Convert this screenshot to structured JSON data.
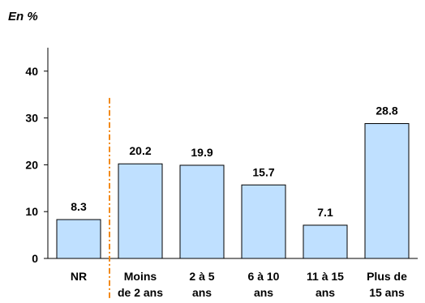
{
  "chart_data": {
    "type": "bar",
    "unit_label": "En %",
    "categories": [
      [
        "NR"
      ],
      [
        "Moins",
        "de 2 ans"
      ],
      [
        "2 à 5",
        "ans"
      ],
      [
        "6 à 10",
        "ans"
      ],
      [
        "11 à 15",
        "ans"
      ],
      [
        "Plus de",
        "15 ans"
      ]
    ],
    "values": [
      8.3,
      20.2,
      19.9,
      15.7,
      7.1,
      28.8
    ],
    "value_labels": [
      "8.3",
      "20.2",
      "19.9",
      "15.7",
      "7.1",
      "28.8"
    ],
    "y_ticks": [
      "0",
      "10",
      "20",
      "30",
      "40"
    ],
    "ylim": [
      0,
      45
    ],
    "grid": false,
    "bar_color": "#bfe0ff",
    "bar_stroke": "#000000",
    "separator_color": "#f28a1a",
    "separator_after_index": 0
  }
}
